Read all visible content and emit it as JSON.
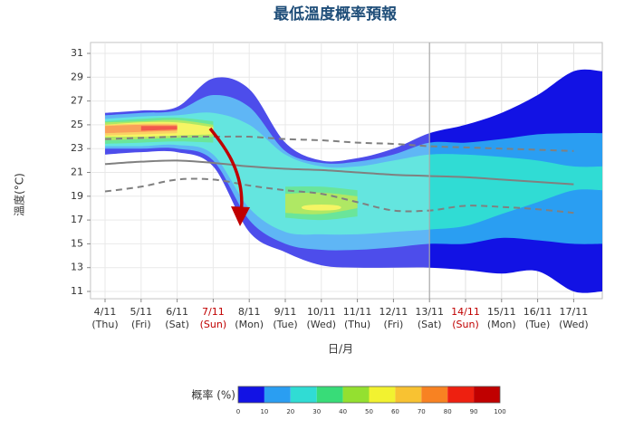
{
  "chart_data": {
    "type": "fan",
    "title": "最低溫度概率預報",
    "x_label": "日/月",
    "y_label": "溫度(°C)",
    "categories": [
      "4/11",
      "5/11",
      "6/11",
      "7/11",
      "8/11",
      "9/11",
      "10/11",
      "11/11",
      "12/11",
      "13/11",
      "14/11",
      "15/11",
      "16/11",
      "17/11"
    ],
    "weekdays": [
      "(Thu)",
      "(Fri)",
      "(Sat)",
      "(Sun)",
      "(Mon)",
      "(Tue)",
      "(Wed)",
      "(Thu)",
      "(Fri)",
      "(Sat)",
      "(Sun)",
      "(Mon)",
      "(Tue)",
      "(Wed)"
    ],
    "category_colors": [
      "#333",
      "#333",
      "#333",
      "#c00000",
      "#333",
      "#333",
      "#333",
      "#333",
      "#333",
      "#333",
      "#c00000",
      "#333",
      "#333",
      "#333"
    ],
    "ylim": [
      11,
      31
    ],
    "yticks": [
      11,
      13,
      15,
      17,
      19,
      21,
      23,
      25,
      27,
      29,
      31
    ],
    "grid": true,
    "divider": 9,
    "colorbar": {
      "label": "概率 (%)",
      "ticks": [
        0,
        10,
        20,
        30,
        40,
        50,
        60,
        70,
        80,
        90,
        100
      ],
      "colors": [
        "#1212e4",
        "#2a9ef2",
        "#30dcd4",
        "#38dc78",
        "#94e030",
        "#f2f230",
        "#f8c232",
        "#f88222",
        "#ee2010",
        "#c00000"
      ]
    },
    "bands": [
      {
        "level": 0,
        "upper": [
          26,
          26.2,
          26.5,
          28.9,
          28,
          23.5,
          22,
          22.2,
          23,
          24.3,
          25,
          26,
          27.5,
          29.5
        ],
        "lower": [
          22.5,
          22.7,
          22.7,
          21.5,
          16,
          14.3,
          13.2,
          13,
          13,
          13,
          12.8,
          12.5,
          12.7,
          11
        ]
      },
      {
        "level": 10,
        "upper": [
          25.8,
          26,
          26.2,
          27.5,
          26.5,
          22.8,
          21.8,
          21.9,
          22.5,
          23.5,
          23.5,
          23.8,
          24.2,
          24.3
        ],
        "lower": [
          23,
          23,
          23,
          22,
          17,
          15,
          14.5,
          14.5,
          14.7,
          15,
          15,
          15.5,
          15.3,
          15
        ]
      },
      {
        "level": 20,
        "upper": [
          25.5,
          25.7,
          25.8,
          26,
          25,
          22.5,
          21.5,
          21.5,
          22,
          22.5,
          22.5,
          22.3,
          22,
          21.5
        ],
        "lower": [
          23.2,
          23.2,
          23.3,
          22.5,
          18,
          16,
          15.8,
          15.8,
          16,
          16.2,
          16.5,
          17.5,
          18.5,
          19.5
        ]
      },
      {
        "level": 30,
        "upper": [
          25.3,
          25.5,
          25.6,
          25.3,
          null,
          19.8,
          19.8,
          19.5,
          null,
          null,
          null,
          null,
          null,
          null
        ],
        "lower": [
          23.4,
          23.5,
          23.6,
          23.5,
          null,
          17.2,
          17,
          17.3,
          null,
          null,
          null,
          null,
          null,
          null
        ]
      },
      {
        "level": 40,
        "upper": [
          25.2,
          25.3,
          25.4,
          25,
          null,
          19.2,
          19.3,
          19,
          null,
          null,
          null,
          null,
          null,
          null
        ],
        "lower": [
          23.7,
          23.8,
          23.9,
          24,
          null,
          17.6,
          17.5,
          18,
          null,
          null,
          null,
          null,
          null,
          null
        ]
      },
      {
        "level": 50,
        "upper": [
          25,
          25.2,
          25.2,
          24.8,
          null,
          null,
          18.3,
          null,
          null,
          null,
          null,
          null,
          null,
          null
        ],
        "lower": [
          24,
          24,
          24.1,
          24.2,
          null,
          null,
          17.8,
          null,
          null,
          null,
          null,
          null,
          null,
          null
        ]
      },
      {
        "level": 60,
        "upper": [
          25,
          25.1,
          25.1,
          null,
          null,
          null,
          null,
          null,
          null,
          null,
          null,
          null,
          null,
          null
        ],
        "lower": [
          24.1,
          24.2,
          24.3,
          null,
          null,
          null,
          null,
          null,
          null,
          null,
          null,
          null,
          null,
          null
        ]
      },
      {
        "level": 70,
        "upper": [
          24.9,
          25,
          25,
          null,
          null,
          null,
          null,
          null,
          null,
          null,
          null,
          null,
          null,
          null
        ],
        "lower": [
          24.3,
          24.4,
          24.5,
          null,
          null,
          null,
          null,
          null,
          null,
          null,
          null,
          null,
          null,
          null
        ]
      },
      {
        "level": 80,
        "upper": [
          null,
          24.9,
          24.9,
          null,
          null,
          null,
          null,
          null,
          null,
          null,
          null,
          null,
          null,
          null
        ],
        "lower": [
          null,
          24.5,
          24.6,
          null,
          null,
          null,
          null,
          null,
          null,
          null,
          null,
          null,
          null,
          null
        ]
      }
    ],
    "series": [
      {
        "color": "#808080",
        "dashed": true,
        "values": [
          23.8,
          23.9,
          24,
          24,
          24,
          23.8,
          23.7,
          23.5,
          23.4,
          23.2,
          23.1,
          23,
          22.9,
          22.8
        ]
      },
      {
        "color": "#808080",
        "dashed": false,
        "values": [
          21.7,
          21.9,
          22,
          21.8,
          21.5,
          21.3,
          21.2,
          21,
          20.8,
          20.7,
          20.6,
          20.4,
          20.2,
          20
        ]
      },
      {
        "color": "#808080",
        "dashed": true,
        "values": [
          19.4,
          19.8,
          20.4,
          20.4,
          19.9,
          19.5,
          19.2,
          18.5,
          17.8,
          17.8,
          18.2,
          18.1,
          17.9,
          17.6
        ]
      }
    ]
  }
}
